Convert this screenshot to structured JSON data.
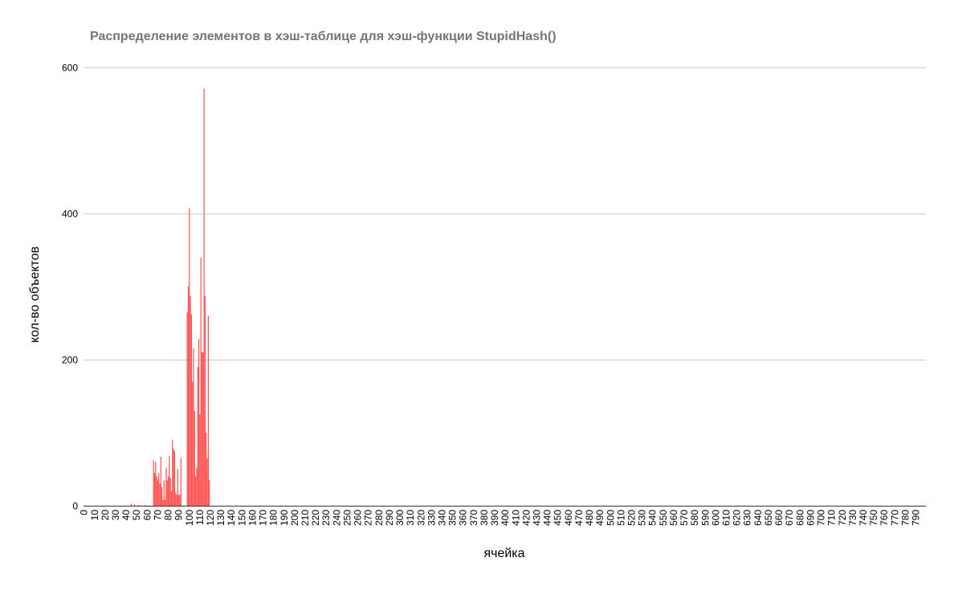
{
  "chart_data": {
    "type": "bar",
    "title": "Распределение элементов в хэш-таблице для хэш-функции StupidHash()",
    "xlabel": "ячейка",
    "ylabel": "кол-во объектов",
    "ylim": [
      0,
      600
    ],
    "yticks": [
      0,
      200,
      400,
      600
    ],
    "xlim": [
      0,
      799
    ],
    "xtick_step": 10,
    "grid": true,
    "legend": "none",
    "bar_color": "#ff4c4c",
    "points": [
      {
        "x": 45,
        "y": 3
      },
      {
        "x": 48,
        "y": 2
      },
      {
        "x": 52,
        "y": 1
      },
      {
        "x": 58,
        "y": 1
      },
      {
        "x": 66,
        "y": 62
      },
      {
        "x": 67,
        "y": 45
      },
      {
        "x": 68,
        "y": 60
      },
      {
        "x": 69,
        "y": 40
      },
      {
        "x": 70,
        "y": 35
      },
      {
        "x": 71,
        "y": 45
      },
      {
        "x": 72,
        "y": 30
      },
      {
        "x": 73,
        "y": 67
      },
      {
        "x": 74,
        "y": 25
      },
      {
        "x": 75,
        "y": 8
      },
      {
        "x": 76,
        "y": 35
      },
      {
        "x": 77,
        "y": 8
      },
      {
        "x": 78,
        "y": 52
      },
      {
        "x": 79,
        "y": 35
      },
      {
        "x": 80,
        "y": 40
      },
      {
        "x": 81,
        "y": 68
      },
      {
        "x": 82,
        "y": 38
      },
      {
        "x": 83,
        "y": 20
      },
      {
        "x": 84,
        "y": 90
      },
      {
        "x": 85,
        "y": 78
      },
      {
        "x": 86,
        "y": 75
      },
      {
        "x": 87,
        "y": 18
      },
      {
        "x": 88,
        "y": 15
      },
      {
        "x": 89,
        "y": 50
      },
      {
        "x": 90,
        "y": 15
      },
      {
        "x": 91,
        "y": 15
      },
      {
        "x": 92,
        "y": 65
      },
      {
        "x": 98,
        "y": 265
      },
      {
        "x": 99,
        "y": 300
      },
      {
        "x": 100,
        "y": 407
      },
      {
        "x": 101,
        "y": 287
      },
      {
        "x": 102,
        "y": 262
      },
      {
        "x": 103,
        "y": 170
      },
      {
        "x": 104,
        "y": 215
      },
      {
        "x": 105,
        "y": 130
      },
      {
        "x": 106,
        "y": 40
      },
      {
        "x": 107,
        "y": 52
      },
      {
        "x": 108,
        "y": 190
      },
      {
        "x": 109,
        "y": 228
      },
      {
        "x": 110,
        "y": 125
      },
      {
        "x": 111,
        "y": 340
      },
      {
        "x": 112,
        "y": 210
      },
      {
        "x": 113,
        "y": 210
      },
      {
        "x": 114,
        "y": 571
      },
      {
        "x": 115,
        "y": 287
      },
      {
        "x": 116,
        "y": 100
      },
      {
        "x": 117,
        "y": 65
      },
      {
        "x": 118,
        "y": 260
      },
      {
        "x": 119,
        "y": 35
      }
    ]
  }
}
